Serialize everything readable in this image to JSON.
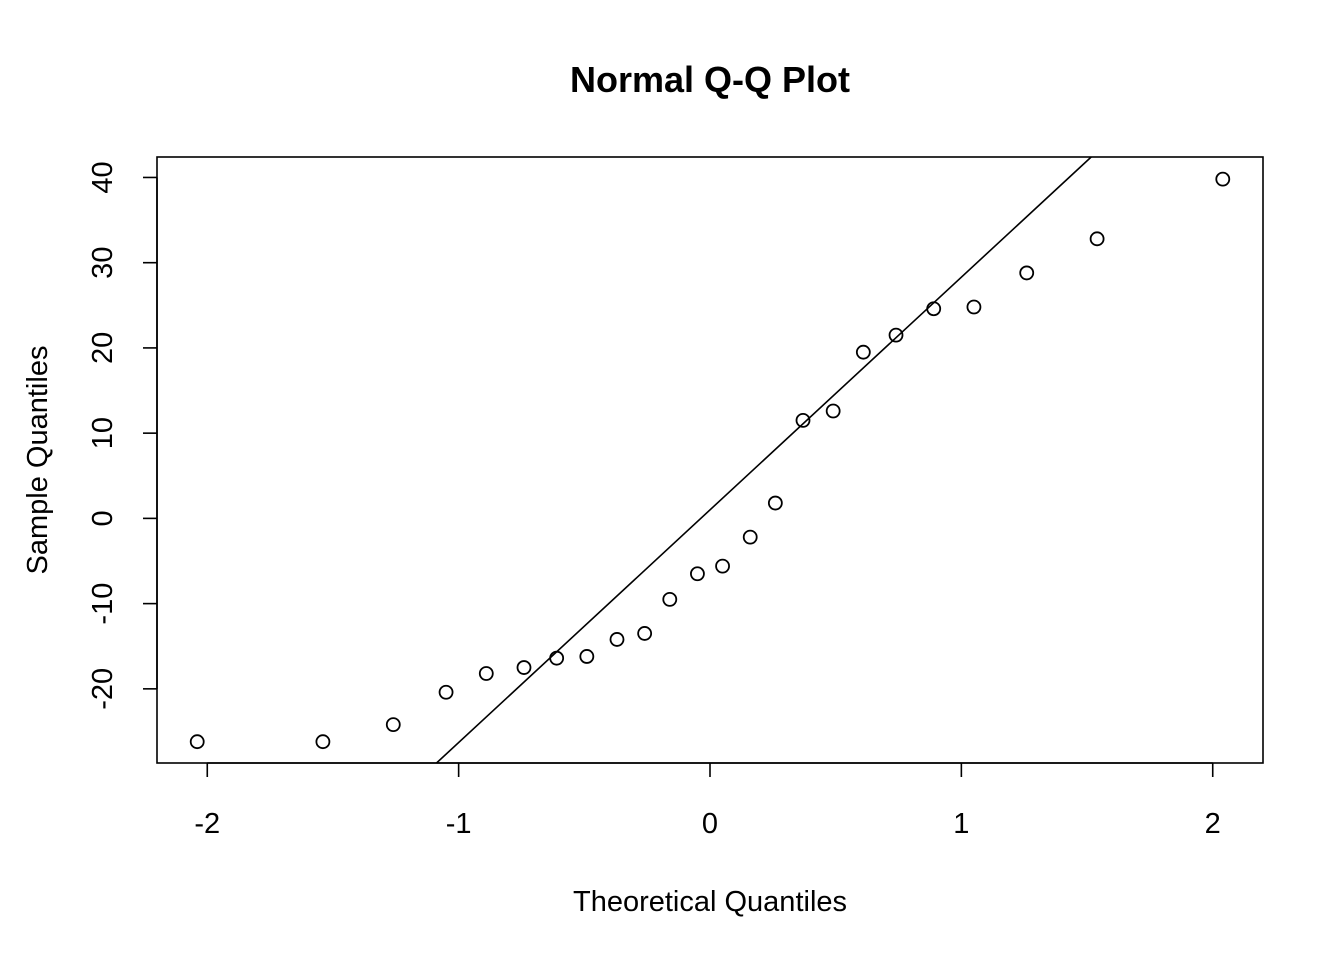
{
  "chart_data": {
    "type": "scatter",
    "title": "Normal Q-Q Plot",
    "xlabel": "Theoretical Quantiles",
    "ylabel": "Sample Quantiles",
    "xlim": [
      -2.2,
      2.2
    ],
    "ylim": [
      -28.7,
      42.4
    ],
    "xticks": [
      -2,
      -1,
      0,
      1,
      2
    ],
    "yticks": [
      -20,
      -10,
      0,
      10,
      20,
      30,
      40
    ],
    "grid": false,
    "legend": "none",
    "points": [
      {
        "x": -2.04,
        "y": -26.2
      },
      {
        "x": -1.54,
        "y": -26.2
      },
      {
        "x": -1.26,
        "y": -24.2
      },
      {
        "x": -1.05,
        "y": -20.4
      },
      {
        "x": -0.89,
        "y": -18.2
      },
      {
        "x": -0.74,
        "y": -17.5
      },
      {
        "x": -0.61,
        "y": -16.4
      },
      {
        "x": -0.49,
        "y": -16.2
      },
      {
        "x": -0.37,
        "y": -14.2
      },
      {
        "x": -0.26,
        "y": -13.5
      },
      {
        "x": -0.16,
        "y": -9.5
      },
      {
        "x": -0.05,
        "y": -6.5
      },
      {
        "x": 0.05,
        "y": -5.6
      },
      {
        "x": 0.16,
        "y": -2.2
      },
      {
        "x": 0.26,
        "y": 1.8
      },
      {
        "x": 0.37,
        "y": 11.5
      },
      {
        "x": 0.49,
        "y": 12.6
      },
      {
        "x": 0.61,
        "y": 19.5
      },
      {
        "x": 0.74,
        "y": 21.5
      },
      {
        "x": 0.89,
        "y": 24.6
      },
      {
        "x": 1.05,
        "y": 24.8
      },
      {
        "x": 1.26,
        "y": 28.8
      },
      {
        "x": 1.54,
        "y": 32.8
      },
      {
        "x": 2.04,
        "y": 39.8
      }
    ],
    "reference_line": {
      "intercept": 1.0,
      "slope": 27.3
    }
  }
}
